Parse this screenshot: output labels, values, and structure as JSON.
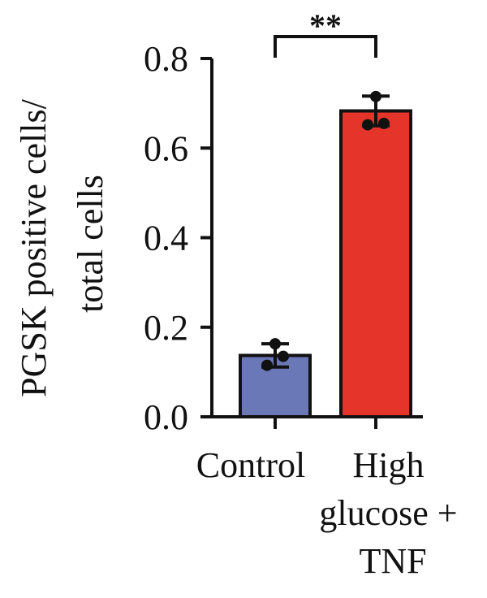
{
  "chart_data": {
    "type": "bar",
    "categories": [
      "Control",
      "High glucose + TNF"
    ],
    "category_label_lines": [
      [
        "Control"
      ],
      [
        "High",
        "glucose +",
        "TNF"
      ]
    ],
    "values": [
      0.137,
      0.683
    ],
    "error": [
      0.026,
      0.033
    ],
    "points": [
      [
        0.115,
        0.135,
        0.163
      ],
      [
        0.652,
        0.655,
        0.715
      ]
    ],
    "colors": [
      "#6b78b8",
      "#e5352b"
    ],
    "ylabel_lines": [
      "PGSK positive cells/",
      "total cells"
    ],
    "yticks": [
      "0.0",
      "0.2",
      "0.4",
      "0.6",
      "0.8"
    ],
    "ylim": [
      0,
      0.8
    ],
    "significance": {
      "label": "**",
      "between": [
        "Control",
        "High glucose + TNF"
      ]
    }
  }
}
